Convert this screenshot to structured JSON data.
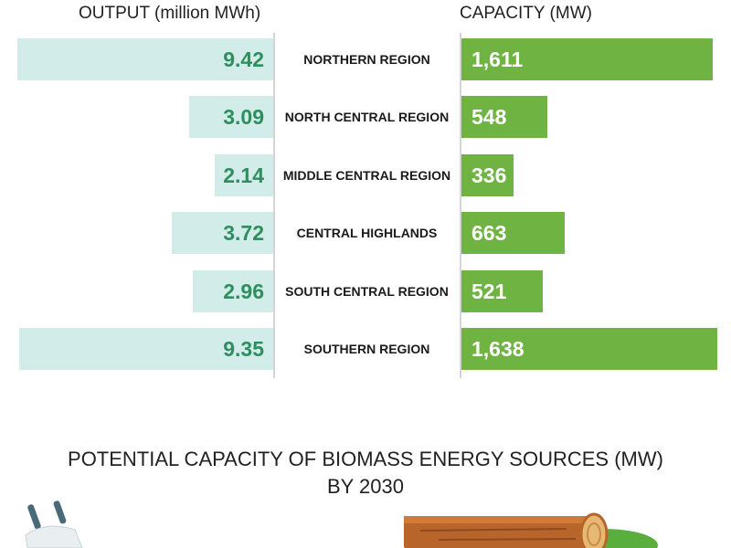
{
  "headers": {
    "left": "OUTPUT (million MWh)",
    "right": "CAPACITY (MW)"
  },
  "colors": {
    "output_bar": "#d2ecea",
    "output_text": "#2e8f5e",
    "capacity_bar": "#6fb443",
    "capacity_text": "#ffffff"
  },
  "chart_data": {
    "type": "bar",
    "categories": [
      "NORTHERN REGION",
      "NORTH CENTRAL REGION",
      "MIDDLE CENTRAL REGION",
      "CENTRAL HIGHLANDS",
      "SOUTH CENTRAL REGION",
      "SOUTHERN REGION"
    ],
    "series": [
      {
        "name": "OUTPUT (million MWh)",
        "values": [
          9.42,
          3.09,
          2.14,
          3.72,
          2.96,
          9.35
        ],
        "labels": [
          "9.42",
          "3.09",
          "2.14",
          "3.72",
          "2.96",
          "9.35"
        ]
      },
      {
        "name": "CAPACITY (MW)",
        "values": [
          1611,
          548,
          336,
          663,
          521,
          1638
        ],
        "labels": [
          "1,611",
          "548",
          "336",
          "663",
          "521",
          "1,638"
        ]
      }
    ],
    "orientation": "horizontal-butterfly"
  },
  "section2": {
    "title_line1": "POTENTIAL CAPACITY OF BIOMASS ENERGY SOURCES (MW)",
    "title_line2": "BY 2030",
    "illustrations": [
      "plug-icon",
      "log-icon"
    ]
  }
}
